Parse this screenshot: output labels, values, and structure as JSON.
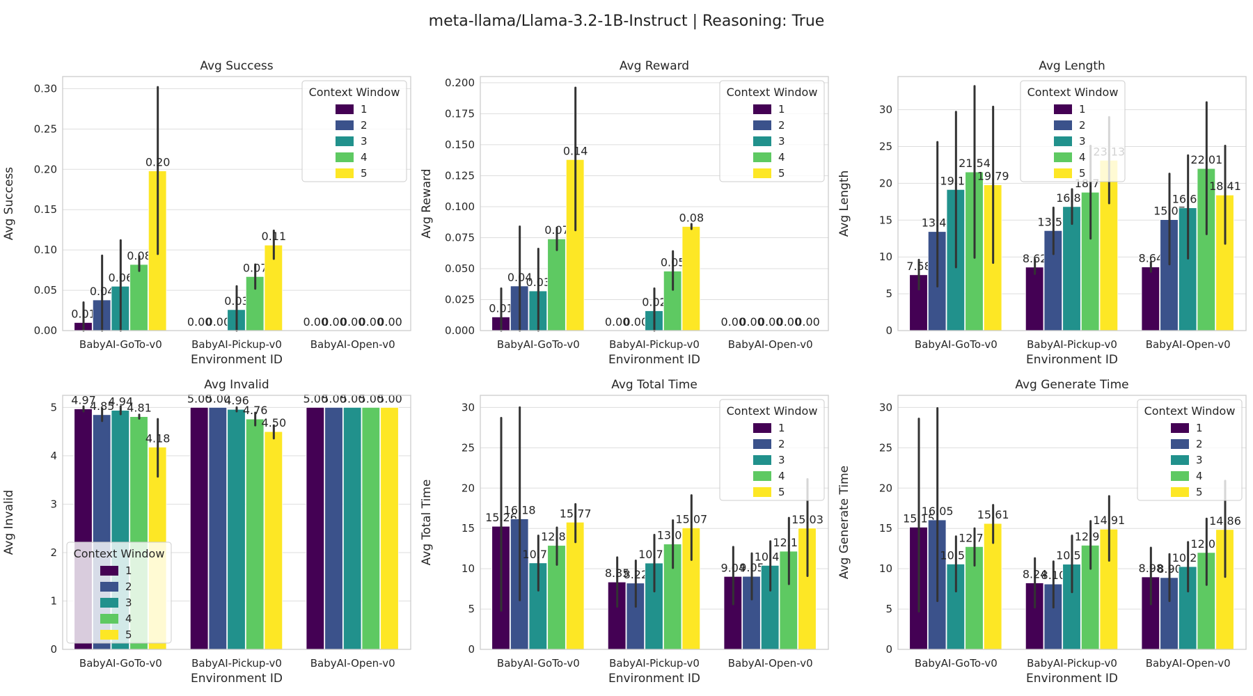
{
  "figure": {
    "title": "meta-llama/Llama-3.2-1B-Instruct | Reasoning: True"
  },
  "series_colors": [
    "#440154",
    "#3b528b",
    "#21918c",
    "#5ec962",
    "#fde725"
  ],
  "chart_data": [
    {
      "type": "bar",
      "title": "Avg Success",
      "xlabel": "Environment ID",
      "ylabel": "Avg Success",
      "categories": [
        "BabyAI-GoTo-v0",
        "BabyAI-Pickup-v0",
        "BabyAI-Open-v0"
      ],
      "ylim": [
        0,
        0.315
      ],
      "yticks": [
        0,
        0.05,
        0.1,
        0.15,
        0.2,
        0.25,
        0.3
      ],
      "ytick_labels": [
        "0.00",
        "0.05",
        "0.10",
        "0.15",
        "0.20",
        "0.25",
        "0.30"
      ],
      "grid": true,
      "legend": {
        "title": "Context Window",
        "placement": "upper-right"
      },
      "series": [
        {
          "name": "1",
          "values": [
            0.01,
            0.0,
            0.0
          ],
          "labels": [
            "0.01",
            "0.00",
            "0.00"
          ],
          "err_low": [
            0.0,
            0.0,
            0.0
          ],
          "err_high": [
            0.035,
            0.0,
            0.0
          ]
        },
        {
          "name": "2",
          "values": [
            0.038,
            0.0,
            0.0
          ],
          "labels": [
            "0.04",
            "0.00",
            "0.00"
          ],
          "err_low": [
            0.0,
            0.0,
            0.0
          ],
          "err_high": [
            0.093,
            0.0,
            0.0
          ]
        },
        {
          "name": "3",
          "values": [
            0.055,
            0.026,
            0.0
          ],
          "labels": [
            "0.06",
            "0.03",
            "0.00"
          ],
          "err_low": [
            0.0,
            0.0,
            0.0
          ],
          "err_high": [
            0.112,
            0.055,
            0.0
          ]
        },
        {
          "name": "4",
          "values": [
            0.082,
            0.067,
            0.0
          ],
          "labels": [
            "0.08",
            "0.07",
            "0.00"
          ],
          "err_low": [
            0.074,
            0.052,
            0.0
          ],
          "err_high": [
            0.092,
            0.082,
            0.0
          ]
        },
        {
          "name": "5",
          "values": [
            0.198,
            0.106,
            0.0
          ],
          "labels": [
            "0.20",
            "0.11",
            "0.00"
          ],
          "err_low": [
            0.095,
            0.089,
            0.0
          ],
          "err_high": [
            0.302,
            0.124,
            0.0
          ]
        }
      ]
    },
    {
      "type": "bar",
      "title": "Avg Reward",
      "xlabel": "Environment ID",
      "ylabel": "Avg Reward",
      "categories": [
        "BabyAI-GoTo-v0",
        "BabyAI-Pickup-v0",
        "BabyAI-Open-v0"
      ],
      "ylim": [
        0,
        0.205
      ],
      "yticks": [
        0,
        0.025,
        0.05,
        0.075,
        0.1,
        0.125,
        0.15,
        0.175,
        0.2
      ],
      "ytick_labels": [
        "0.000",
        "0.025",
        "0.050",
        "0.075",
        "0.100",
        "0.125",
        "0.150",
        "0.175",
        "0.200"
      ],
      "grid": true,
      "legend": {
        "title": "Context Window",
        "placement": "upper-right"
      },
      "series": [
        {
          "name": "1",
          "values": [
            0.011,
            0.0,
            0.0
          ],
          "labels": [
            "0.01",
            "0.00",
            "0.00"
          ],
          "err_low": [
            0.0,
            0.0,
            0.0
          ],
          "err_high": [
            0.034,
            0.0,
            0.0
          ]
        },
        {
          "name": "2",
          "values": [
            0.036,
            0.0,
            0.0
          ],
          "labels": [
            "0.04",
            "0.00",
            "0.00"
          ],
          "err_low": [
            0.0,
            0.0,
            0.0
          ],
          "err_high": [
            0.084,
            0.0,
            0.0
          ]
        },
        {
          "name": "3",
          "values": [
            0.032,
            0.016,
            0.0
          ],
          "labels": [
            "0.03",
            "0.02",
            "0.00"
          ],
          "err_low": [
            0.0,
            0.0,
            0.0
          ],
          "err_high": [
            0.066,
            0.034,
            0.0
          ]
        },
        {
          "name": "4",
          "values": [
            0.074,
            0.048,
            0.0
          ],
          "labels": [
            "0.07",
            "0.05",
            "0.00"
          ],
          "err_low": [
            0.065,
            0.033,
            0.0
          ],
          "err_high": [
            0.083,
            0.064,
            0.0
          ]
        },
        {
          "name": "5",
          "values": [
            0.138,
            0.084,
            0.0
          ],
          "labels": [
            "0.14",
            "0.08",
            "0.00"
          ],
          "err_low": [
            0.081,
            0.082,
            0.0
          ],
          "err_high": [
            0.196,
            0.086,
            0.0
          ]
        }
      ]
    },
    {
      "type": "bar",
      "title": "Avg Length",
      "xlabel": "Environment ID",
      "ylabel": "Avg Length",
      "categories": [
        "BabyAI-GoTo-v0",
        "BabyAI-Pickup-v0",
        "BabyAI-Open-v0"
      ],
      "ylim": [
        0,
        34.5
      ],
      "yticks": [
        0,
        5,
        10,
        15,
        20,
        25,
        30
      ],
      "ytick_labels": [
        "0",
        "5",
        "10",
        "15",
        "20",
        "25",
        "30"
      ],
      "grid": true,
      "legend": {
        "title": "Context Window",
        "placement": "upper-center"
      },
      "series": [
        {
          "name": "1",
          "values": [
            7.58,
            8.62,
            8.64
          ],
          "labels": [
            "7.58",
            "8.62",
            "8.64"
          ],
          "err_low": [
            5.6,
            7.7,
            8.0
          ],
          "err_high": [
            9.6,
            9.6,
            9.3
          ]
        },
        {
          "name": "2",
          "values": [
            13.45,
            13.58,
            15.07
          ],
          "labels": [
            "13.45",
            "13.58",
            "15.07"
          ],
          "err_low": [
            6.0,
            10.4,
            9.0
          ],
          "err_high": [
            25.6,
            16.7,
            21.3
          ]
        },
        {
          "name": "3",
          "values": [
            19.16,
            16.84,
            16.67
          ],
          "labels": [
            "19.16",
            "16.84",
            "16.67"
          ],
          "err_low": [
            8.6,
            14.5,
            9.8
          ],
          "err_high": [
            29.7,
            19.2,
            23.8
          ]
        },
        {
          "name": "4",
          "values": [
            21.54,
            18.79,
            22.01
          ],
          "labels": [
            "21.54",
            "18.79",
            "22.01"
          ],
          "err_low": [
            9.9,
            12.5,
            13.1
          ],
          "err_high": [
            33.2,
            25.1,
            31.0
          ]
        },
        {
          "name": "5",
          "values": [
            19.79,
            23.13,
            18.41
          ],
          "labels": [
            "19.79",
            "23.13",
            "18.41"
          ],
          "err_low": [
            9.2,
            17.3,
            11.8
          ],
          "err_high": [
            30.4,
            29.0,
            25.1
          ]
        }
      ]
    },
    {
      "type": "bar",
      "title": "Avg Invalid",
      "xlabel": "Environment ID",
      "ylabel": "Avg Invalid",
      "categories": [
        "BabyAI-GoTo-v0",
        "BabyAI-Pickup-v0",
        "BabyAI-Open-v0"
      ],
      "ylim": [
        0,
        5.25
      ],
      "yticks": [
        0,
        1,
        2,
        3,
        4,
        5
      ],
      "ytick_labels": [
        "0",
        "1",
        "2",
        "3",
        "4",
        "5"
      ],
      "grid": true,
      "legend": {
        "title": "Context Window",
        "placement": "lower-left"
      },
      "series": [
        {
          "name": "1",
          "values": [
            4.97,
            5.0,
            5.0
          ],
          "labels": [
            "4.97",
            "5.00",
            "5.00"
          ],
          "err_low": [
            4.92,
            5.0,
            5.0
          ],
          "err_high": [
            5.02,
            5.0,
            5.0
          ]
        },
        {
          "name": "2",
          "values": [
            4.85,
            5.0,
            5.0
          ],
          "labels": [
            "4.85",
            "5.00",
            "5.00"
          ],
          "err_low": [
            4.72,
            5.0,
            5.0
          ],
          "err_high": [
            4.98,
            5.0,
            5.0
          ]
        },
        {
          "name": "3",
          "values": [
            4.94,
            4.96,
            5.0
          ],
          "labels": [
            "4.94",
            "4.96",
            "5.00"
          ],
          "err_low": [
            4.86,
            4.92,
            5.0
          ],
          "err_high": [
            5.02,
            5.0,
            5.0
          ]
        },
        {
          "name": "4",
          "values": [
            4.81,
            4.76,
            5.0
          ],
          "labels": [
            "4.81",
            "4.76",
            "5.00"
          ],
          "err_low": [
            4.77,
            4.63,
            5.0
          ],
          "err_high": [
            4.85,
            4.89,
            5.0
          ]
        },
        {
          "name": "5",
          "values": [
            4.18,
            4.5,
            5.0
          ],
          "labels": [
            "4.18",
            "4.50",
            "5.00"
          ],
          "err_low": [
            3.57,
            4.36,
            5.0
          ],
          "err_high": [
            4.76,
            4.63,
            5.0
          ]
        }
      ]
    },
    {
      "type": "bar",
      "title": "Avg Total Time",
      "xlabel": "Environment ID",
      "ylabel": "Avg Total Time",
      "categories": [
        "BabyAI-GoTo-v0",
        "BabyAI-Pickup-v0",
        "BabyAI-Open-v0"
      ],
      "ylim": [
        0,
        31.5
      ],
      "yticks": [
        0,
        5,
        10,
        15,
        20,
        25,
        30
      ],
      "ytick_labels": [
        "0",
        "5",
        "10",
        "15",
        "20",
        "25",
        "30"
      ],
      "grid": true,
      "legend": {
        "title": "Context Window",
        "placement": "upper-right"
      },
      "series": [
        {
          "name": "1",
          "values": [
            15.26,
            8.35,
            9.04
          ],
          "labels": [
            "15.26",
            "8.35",
            "9.04"
          ],
          "err_low": [
            4.8,
            5.3,
            5.6
          ],
          "err_high": [
            28.7,
            11.4,
            12.7
          ]
        },
        {
          "name": "2",
          "values": [
            16.18,
            8.22,
            9.05
          ],
          "labels": [
            "16.18",
            "8.22",
            "9.05"
          ],
          "err_low": [
            6.1,
            5.3,
            6.2
          ],
          "err_high": [
            30.0,
            11.0,
            11.9
          ]
        },
        {
          "name": "3",
          "values": [
            10.72,
            10.7,
            10.41
          ],
          "labels": [
            "10.72",
            "10.70",
            "10.41"
          ],
          "err_low": [
            7.3,
            7.2,
            7.3
          ],
          "err_high": [
            14.1,
            14.2,
            13.4
          ]
        },
        {
          "name": "4",
          "values": [
            12.89,
            13.06,
            12.17
          ],
          "labels": [
            "12.89",
            "13.06",
            "12.17"
          ],
          "err_low": [
            10.5,
            10.1,
            8.1
          ],
          "err_high": [
            15.1,
            16.0,
            16.3
          ]
        },
        {
          "name": "5",
          "values": [
            15.77,
            15.07,
            15.03
          ],
          "labels": [
            "15.77",
            "15.07",
            "15.03"
          ],
          "err_low": [
            13.3,
            11.1,
            9.1
          ],
          "err_high": [
            18.0,
            19.1,
            21.1
          ]
        }
      ]
    },
    {
      "type": "bar",
      "title": "Avg Generate Time",
      "xlabel": "Environment ID",
      "ylabel": "Avg Generate Time",
      "categories": [
        "BabyAI-GoTo-v0",
        "BabyAI-Pickup-v0",
        "BabyAI-Open-v0"
      ],
      "ylim": [
        0,
        31.5
      ],
      "yticks": [
        0,
        5,
        10,
        15,
        20,
        25,
        30
      ],
      "ytick_labels": [
        "0",
        "5",
        "10",
        "15",
        "20",
        "25",
        "30"
      ],
      "grid": true,
      "legend": {
        "title": "Context Window",
        "placement": "upper-right"
      },
      "series": [
        {
          "name": "1",
          "values": [
            15.15,
            8.24,
            8.98
          ],
          "labels": [
            "15.15",
            "8.24",
            "8.98"
          ],
          "err_low": [
            4.7,
            5.2,
            5.6
          ],
          "err_high": [
            28.6,
            11.3,
            12.6
          ]
        },
        {
          "name": "2",
          "values": [
            16.05,
            8.1,
            8.9
          ],
          "labels": [
            "16.05",
            "8.10",
            "8.90"
          ],
          "err_low": [
            6.0,
            5.2,
            6.0
          ],
          "err_high": [
            29.9,
            10.9,
            11.8
          ]
        },
        {
          "name": "3",
          "values": [
            10.58,
            10.56,
            10.26
          ],
          "labels": [
            "10.58",
            "10.56",
            "10.26"
          ],
          "err_low": [
            7.2,
            7.1,
            7.2
          ],
          "err_high": [
            14.0,
            14.1,
            13.3
          ]
        },
        {
          "name": "4",
          "values": [
            12.74,
            12.91,
            12.01
          ],
          "labels": [
            "12.74",
            "12.91",
            "12.01"
          ],
          "err_low": [
            10.4,
            10.0,
            8.0
          ],
          "err_high": [
            15.0,
            15.9,
            16.2
          ]
        },
        {
          "name": "5",
          "values": [
            15.61,
            14.91,
            14.86
          ],
          "labels": [
            "15.61",
            "14.91",
            "14.86"
          ],
          "err_low": [
            13.2,
            11.0,
            9.0
          ],
          "err_high": [
            17.9,
            19.0,
            20.9
          ]
        }
      ]
    }
  ]
}
